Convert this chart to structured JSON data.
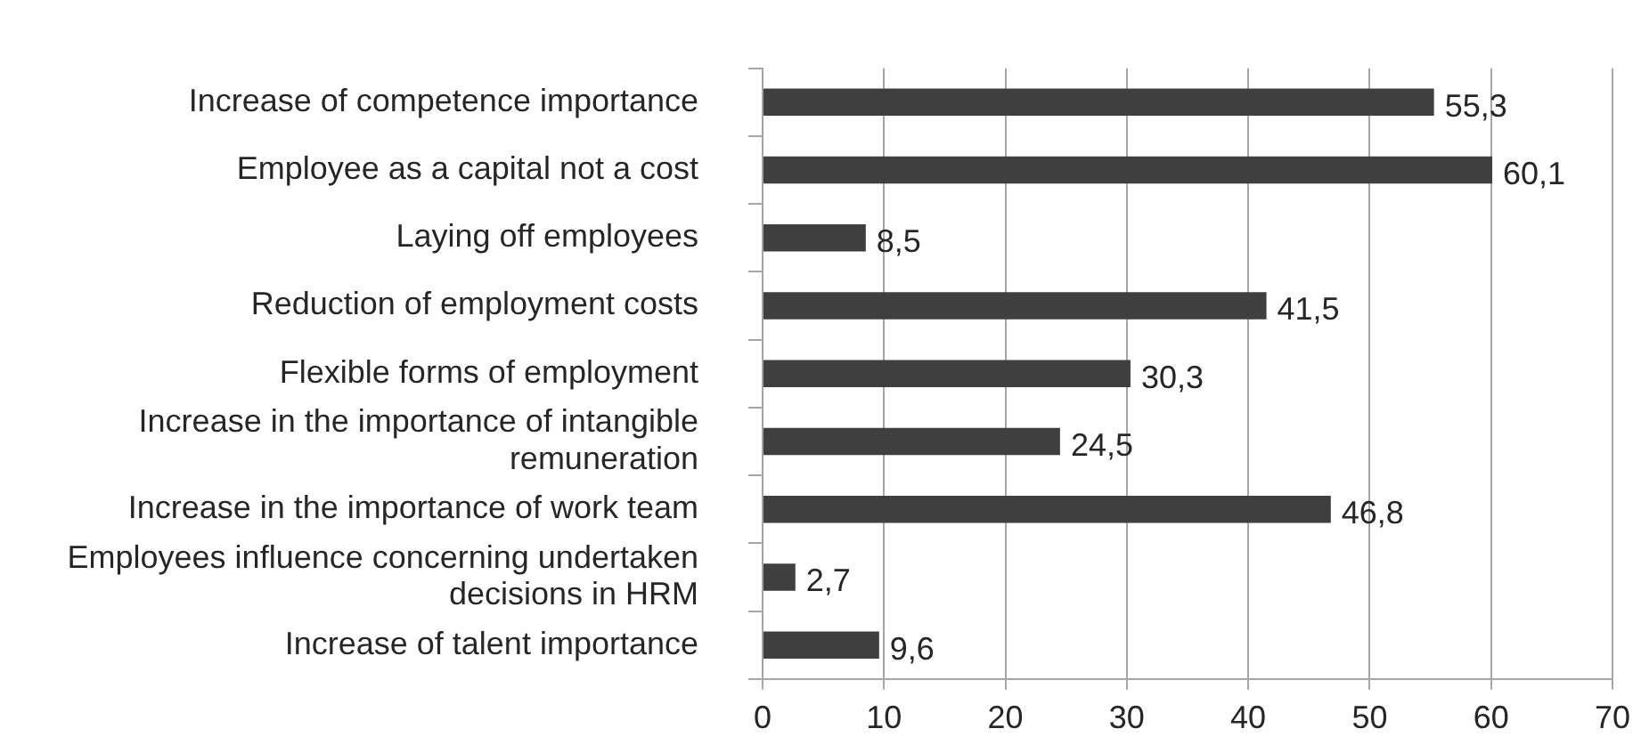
{
  "chart_data": {
    "type": "bar",
    "orientation": "horizontal",
    "categories": [
      "Increase of competence importance",
      "Employee as a capital not a cost",
      "Laying off employees",
      "Reduction of employment costs",
      "Flexible forms of employment",
      "Increase in the importance of intangible remuneration",
      "Increase in the importance of work team",
      "Employees influence concerning undertaken decisions in HRM",
      "Increase of talent importance"
    ],
    "values": [
      55.3,
      60.1,
      8.5,
      41.5,
      30.3,
      24.5,
      46.8,
      2.7,
      9.6
    ],
    "value_labels": [
      "55,3",
      "60,1",
      "8,5",
      "41,5",
      "30,3",
      "24,5",
      "46,8",
      "2,7",
      "9,6"
    ],
    "color": "#3f3f3f",
    "xlim": [
      0,
      70
    ],
    "xticks": [
      0,
      10,
      20,
      30,
      40,
      50,
      60,
      70
    ],
    "grid": "x"
  }
}
